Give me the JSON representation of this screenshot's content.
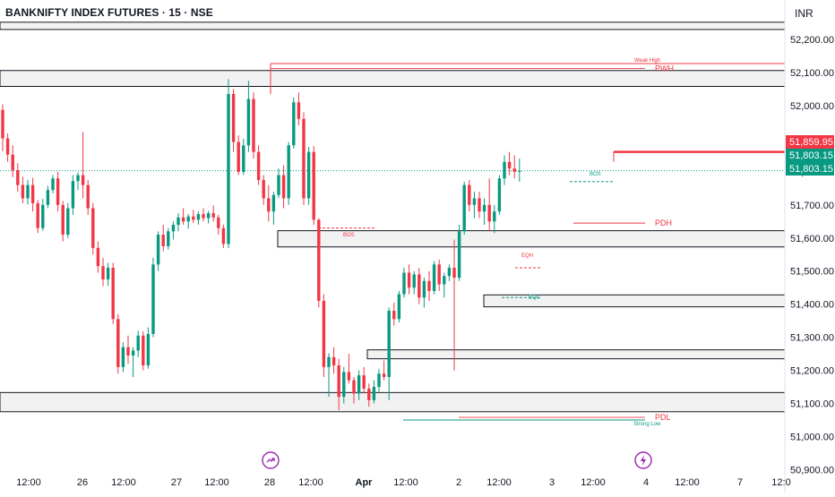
{
  "header": {
    "title": "BANKNIFTY INDEX FUTURES · 15 · NSE",
    "currency": "INR"
  },
  "colors": {
    "up": "#089981",
    "down": "#f23645",
    "zone_fill": "#f2f2f2",
    "zone_border": "#131722",
    "last_price_bg": "#089981",
    "high_line": "#f23645",
    "grid_text": "#131722"
  },
  "price_axis": {
    "ticks": [
      52200,
      52100,
      52000,
      51900,
      51800,
      51700,
      51600,
      51500,
      51400,
      51300,
      51200,
      51100,
      51000,
      50900
    ],
    "labels": [
      "52,200.00",
      "52,100.00",
      "52,000.00",
      "51,900.00",
      "51,800.00",
      "51,700.00",
      "51,600.00",
      "51,500.00",
      "51,400.00",
      "51,300.00",
      "51,200.00",
      "51,100.00",
      "51,000.00",
      "50,900.00"
    ],
    "markers": [
      {
        "label": "51,859.95",
        "value": 51859.95,
        "color": "#f23645"
      },
      {
        "label": "51,803.15",
        "value": 51803.15,
        "color": "#089981"
      },
      {
        "label": "51,803.15",
        "value": 51803.15,
        "color": "#089981"
      }
    ]
  },
  "time_axis": {
    "labels": [
      {
        "text": "12:00",
        "bold": false
      },
      {
        "text": "26",
        "bold": false
      },
      {
        "text": "12:00",
        "bold": false
      },
      {
        "text": "27",
        "bold": false
      },
      {
        "text": "12:00",
        "bold": false
      },
      {
        "text": "28",
        "bold": false
      },
      {
        "text": "12:00",
        "bold": false
      },
      {
        "text": "Apr",
        "bold": true
      },
      {
        "text": "12:00",
        "bold": false
      },
      {
        "text": "2",
        "bold": false
      },
      {
        "text": "12:00",
        "bold": false
      },
      {
        "text": "3",
        "bold": false
      },
      {
        "text": "12:00",
        "bold": false
      },
      {
        "text": "4",
        "bold": false
      },
      {
        "text": "12:00",
        "bold": false
      },
      {
        "text": "7",
        "bold": false
      },
      {
        "text": "12:0",
        "bold": false
      }
    ]
  },
  "chart_data": {
    "type": "candlestick",
    "ylim": [
      50885,
      52265
    ],
    "zones": [
      {
        "from": 52230,
        "to": 52252
      },
      {
        "from": 52058,
        "to": 52106
      },
      {
        "from": 51573,
        "to": 51622
      },
      {
        "from": 51392,
        "to": 51428
      },
      {
        "from": 51235,
        "to": 51262
      },
      {
        "from": 51075,
        "to": 51133
      }
    ],
    "annotations": [
      {
        "text": "Weak High",
        "price": 52127,
        "color": "#f23645",
        "small": true
      },
      {
        "text": "PWH",
        "price": 52112,
        "color": "#f23645",
        "small": false
      },
      {
        "text": "PDH",
        "price": 51645,
        "color": "#f23645",
        "small": false
      },
      {
        "text": "BOS",
        "price": 51599,
        "color": "#f23645",
        "small": true
      },
      {
        "text": "BOS",
        "price": 51783,
        "color": "#089981",
        "small": true
      },
      {
        "text": "EQH",
        "price": 51537,
        "color": "#f23645",
        "small": true
      },
      {
        "text": "EQL",
        "price": 51411,
        "color": "#089981",
        "small": true
      },
      {
        "text": "PDL",
        "price": 51058,
        "color": "#f23645",
        "small": false
      },
      {
        "text": "Strong Low",
        "price": 51028,
        "color": "#089981",
        "small": true
      }
    ],
    "candles": [
      [
        51987,
        52004,
        51862,
        51901
      ],
      [
        51901,
        51916,
        51830,
        51852
      ],
      [
        51852,
        51880,
        51784,
        51805
      ],
      [
        51805,
        51826,
        51740,
        51760
      ],
      [
        51760,
        51785,
        51705,
        51720
      ],
      [
        51720,
        51775,
        51702,
        51760
      ],
      [
        51760,
        51782,
        51680,
        51705
      ],
      [
        51705,
        51715,
        51615,
        51630
      ],
      [
        51630,
        51718,
        51622,
        51700
      ],
      [
        51700,
        51758,
        51690,
        51745
      ],
      [
        51745,
        51790,
        51735,
        51780
      ],
      [
        51780,
        51800,
        51680,
        51700
      ],
      [
        51700,
        51712,
        51590,
        51610
      ],
      [
        51610,
        51706,
        51600,
        51690
      ],
      [
        51690,
        51790,
        51670,
        51772
      ],
      [
        51772,
        51798,
        51745,
        51790
      ],
      [
        51790,
        51920,
        51720,
        51760
      ],
      [
        51760,
        51775,
        51670,
        51690
      ],
      [
        51690,
        51706,
        51550,
        51570
      ],
      [
        51570,
        51590,
        51495,
        51515
      ],
      [
        51515,
        51540,
        51455,
        51475
      ],
      [
        51475,
        51525,
        51455,
        51510
      ],
      [
        51510,
        51525,
        51340,
        51355
      ],
      [
        51355,
        51370,
        51190,
        51210
      ],
      [
        51210,
        51285,
        51195,
        51270
      ],
      [
        51270,
        51305,
        51220,
        51245
      ],
      [
        51245,
        51270,
        51180,
        51260
      ],
      [
        51260,
        51320,
        51240,
        51305
      ],
      [
        51305,
        51318,
        51200,
        51215
      ],
      [
        51215,
        51330,
        51205,
        51310
      ],
      [
        51310,
        51540,
        51300,
        51520
      ],
      [
        51520,
        51620,
        51500,
        51610
      ],
      [
        51610,
        51640,
        51560,
        51575
      ],
      [
        51575,
        51630,
        51565,
        51620
      ],
      [
        51620,
        51650,
        51595,
        51640
      ],
      [
        51640,
        51675,
        51620,
        51662
      ],
      [
        51662,
        51690,
        51640,
        51650
      ],
      [
        51650,
        51672,
        51628,
        51665
      ],
      [
        51665,
        51685,
        51645,
        51655
      ],
      [
        51655,
        51680,
        51640,
        51672
      ],
      [
        51672,
        51690,
        51650,
        51660
      ],
      [
        51660,
        51682,
        51644,
        51675
      ],
      [
        51675,
        51698,
        51650,
        51662
      ],
      [
        51662,
        51670,
        51610,
        51630
      ],
      [
        51630,
        51640,
        51570,
        51582
      ],
      [
        51582,
        52080,
        51570,
        52035
      ],
      [
        52035,
        52050,
        51860,
        51890
      ],
      [
        51890,
        51910,
        51790,
        51800
      ],
      [
        51800,
        51900,
        51790,
        51880
      ],
      [
        51880,
        52075,
        51860,
        52020
      ],
      [
        52020,
        52040,
        51840,
        51860
      ],
      [
        51860,
        51880,
        51760,
        51775
      ],
      [
        51775,
        51790,
        51700,
        51720
      ],
      [
        51720,
        51760,
        51650,
        51680
      ],
      [
        51680,
        51740,
        51640,
        51730
      ],
      [
        51730,
        51810,
        51720,
        51790
      ],
      [
        51790,
        51820,
        51690,
        51720
      ],
      [
        51720,
        51890,
        51700,
        51880
      ],
      [
        51880,
        52025,
        51870,
        52010
      ],
      [
        52010,
        52040,
        51940,
        51960
      ],
      [
        51960,
        51980,
        51700,
        51720
      ],
      [
        51720,
        51875,
        51700,
        51860
      ],
      [
        51860,
        51878,
        51640,
        51655
      ],
      [
        51655,
        51660,
        51390,
        51410
      ],
      [
        51410,
        51430,
        51180,
        51210
      ],
      [
        51210,
        51252,
        51120,
        51240
      ],
      [
        51240,
        51270,
        51190,
        51215
      ],
      [
        51215,
        51235,
        51080,
        51120
      ],
      [
        51120,
        51210,
        51100,
        51195
      ],
      [
        51195,
        51250,
        51160,
        51170
      ],
      [
        51170,
        51180,
        51100,
        51130
      ],
      [
        51130,
        51200,
        51110,
        51185
      ],
      [
        51185,
        51210,
        51130,
        51145
      ],
      [
        51145,
        51160,
        51090,
        51110
      ],
      [
        51110,
        51170,
        51100,
        51150
      ],
      [
        51150,
        51205,
        51135,
        51190
      ],
      [
        51190,
        51230,
        51170,
        51180
      ],
      [
        51180,
        51390,
        51110,
        51380
      ],
      [
        51380,
        51405,
        51335,
        51355
      ],
      [
        51355,
        51440,
        51345,
        51430
      ],
      [
        51430,
        51510,
        51420,
        51495
      ],
      [
        51495,
        51520,
        51430,
        51450
      ],
      [
        51450,
        51500,
        51430,
        51490
      ],
      [
        51490,
        51510,
        51400,
        51420
      ],
      [
        51420,
        51480,
        51390,
        51470
      ],
      [
        51470,
        51500,
        51410,
        51440
      ],
      [
        51440,
        51530,
        51430,
        51520
      ],
      [
        51520,
        51535,
        51440,
        51460
      ],
      [
        51460,
        51495,
        51420,
        51485
      ],
      [
        51485,
        51520,
        51470,
        51510
      ],
      [
        51510,
        51595,
        51200,
        51480
      ],
      [
        51480,
        51640,
        51470,
        51620
      ],
      [
        51620,
        51770,
        51610,
        51760
      ],
      [
        51760,
        51775,
        51680,
        51700
      ],
      [
        51700,
        51740,
        51660,
        51720
      ],
      [
        51720,
        51740,
        51660,
        51680
      ],
      [
        51680,
        51720,
        51640,
        51700
      ],
      [
        51700,
        51780,
        51620,
        51650
      ],
      [
        51650,
        51700,
        51615,
        51680
      ],
      [
        51680,
        51790,
        51670,
        51780
      ],
      [
        51780,
        51850,
        51760,
        51830
      ],
      [
        51830,
        51860,
        51790,
        51810
      ],
      [
        51810,
        51850,
        51780,
        51800
      ],
      [
        51800,
        51840,
        51770,
        51803
      ]
    ]
  }
}
